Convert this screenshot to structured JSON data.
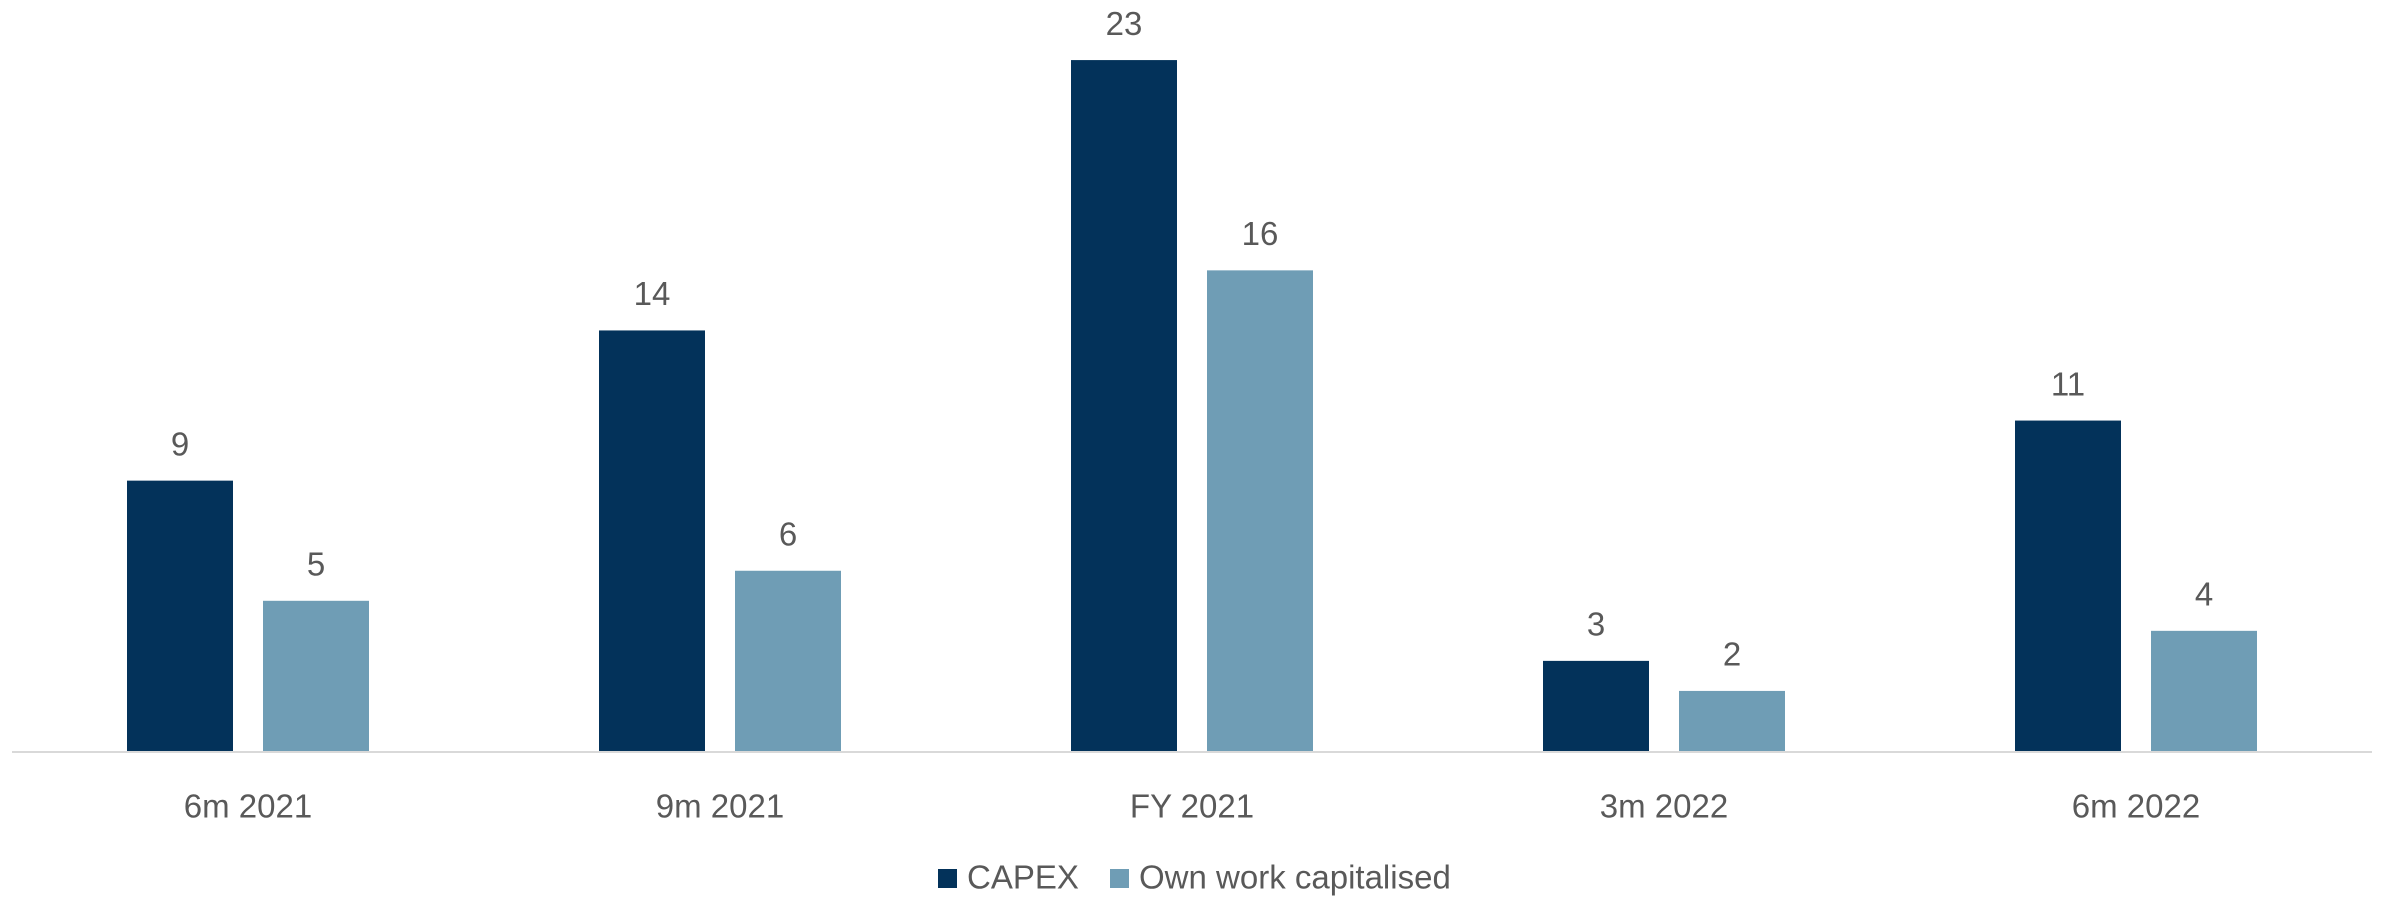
{
  "chart_data": {
    "type": "bar",
    "categories": [
      "6m 2021",
      "9m 2021",
      "FY 2021",
      "3m 2022",
      "6m 2022"
    ],
    "series": [
      {
        "name": "CAPEX",
        "color": "#03325a",
        "values": [
          9,
          14,
          23,
          3,
          11
        ]
      },
      {
        "name": "Own work capitalised",
        "color": "#6f9db5",
        "values": [
          5,
          6,
          16,
          2,
          4
        ]
      }
    ],
    "ylim": [
      0,
      25
    ],
    "legend": "bottom"
  }
}
